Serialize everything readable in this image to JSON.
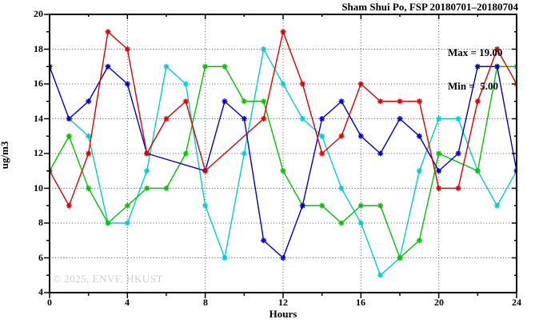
{
  "header": {
    "title": "Sham Shui Po, FSP 20180701–20180704"
  },
  "annotation": {
    "max_label": "Max = 19.00",
    "min_label": "Min =  5.00"
  },
  "watermark": {
    "text": "© 2025, ENVF, HKUST"
  },
  "axes": {
    "y_labels": [
      "20",
      "18",
      "16",
      "14",
      "12",
      "10",
      "8",
      "6",
      "4"
    ],
    "x_labels": [
      "0",
      "4",
      "8",
      "12",
      "16",
      "20",
      "24"
    ]
  },
  "chart_data": {
    "type": "line",
    "title": "Sham Shui Po, FSP 20180701–20180704",
    "xlabel": "Hours",
    "ylabel": "ug/m3",
    "xlim": [
      0,
      24
    ],
    "ylim": [
      4,
      20
    ],
    "x": [
      0,
      1,
      2,
      3,
      4,
      5,
      6,
      7,
      8,
      9,
      10,
      11,
      12,
      13,
      14,
      15,
      16,
      17,
      18,
      19,
      20,
      21,
      22,
      23,
      24
    ],
    "series": [
      {
        "name": "line-cyan",
        "color": "#00cdcd",
        "values": [
          null,
          14,
          13,
          8,
          8,
          11,
          17,
          16,
          9,
          6,
          12,
          18,
          16,
          14,
          13,
          10,
          8,
          5,
          6,
          11,
          14,
          14,
          11,
          9,
          11
        ]
      },
      {
        "name": "line-green",
        "color": "#00c400",
        "values": [
          11,
          13,
          10,
          8,
          9,
          10,
          10,
          12,
          17,
          17,
          15,
          15,
          11,
          9,
          9,
          8,
          9,
          9,
          6,
          7,
          12,
          null,
          11,
          17,
          17
        ]
      },
      {
        "name": "line-blue",
        "color": "#0000cd",
        "values": [
          17,
          14,
          15,
          17,
          16,
          12,
          null,
          null,
          11,
          15,
          14,
          7,
          6,
          9,
          14,
          15,
          13,
          12,
          14,
          13,
          11,
          12,
          17,
          17,
          11
        ]
      },
      {
        "name": "line-red",
        "color": "#dd0000",
        "values": [
          11,
          9,
          12,
          19,
          18,
          12,
          14,
          15,
          11,
          null,
          null,
          14,
          19,
          16,
          12,
          13,
          16,
          15,
          15,
          15,
          10,
          10,
          15,
          18,
          16
        ]
      }
    ],
    "stats": {
      "max": 19.0,
      "min": 5.0
    },
    "grid": {
      "x_values": [
        4,
        8,
        12,
        16,
        20
      ],
      "y_values": [
        6,
        8,
        10,
        12,
        14,
        16,
        18
      ]
    },
    "ticks": {
      "x_major": [
        0,
        4,
        8,
        12,
        16,
        20,
        24
      ],
      "x_minor": [
        2,
        6,
        10,
        14,
        18,
        22
      ],
      "y_major": [
        4,
        6,
        8,
        10,
        12,
        14,
        16,
        18,
        20
      ],
      "y_minor": [
        5,
        7,
        9,
        11,
        13,
        15,
        17,
        19
      ]
    },
    "legend_position": "none",
    "marker": "asterisk"
  }
}
